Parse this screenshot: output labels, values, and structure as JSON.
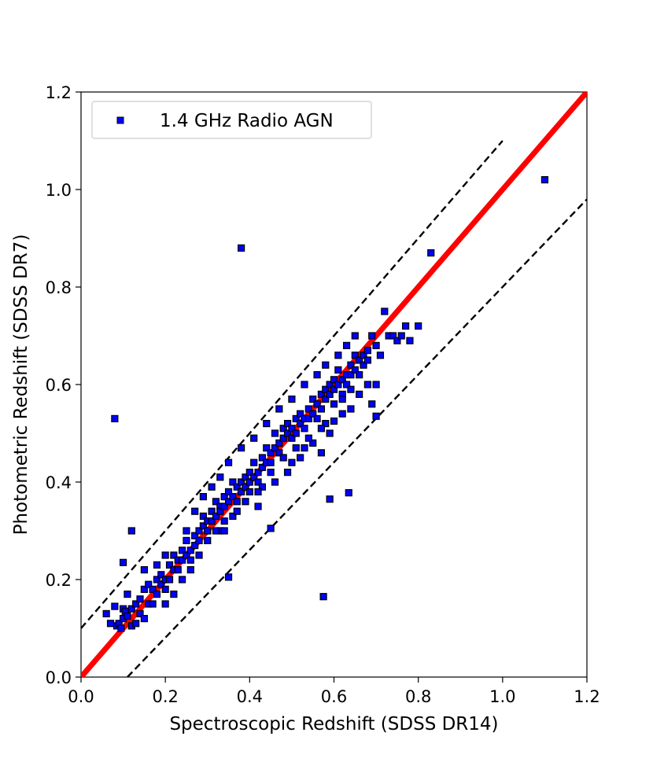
{
  "chart_data": {
    "type": "scatter",
    "xlabel": "Spectroscopic Redshift (SDSS DR14)",
    "ylabel": "Photometric Redshift (SDSS DR7)",
    "xlim": [
      0.0,
      1.2
    ],
    "ylim": [
      0.0,
      1.2
    ],
    "xticks": [
      "0.0",
      "0.2",
      "0.4",
      "0.6",
      "0.8",
      "1.0",
      "1.2"
    ],
    "yticks": [
      "0.0",
      "0.2",
      "0.4",
      "0.6",
      "0.8",
      "1.0",
      "1.2"
    ],
    "grid": false,
    "legend_position": "top-left",
    "series": [
      {
        "name": "1.4 GHz Radio AGN",
        "marker": "square",
        "color": "#0000ff",
        "edgecolor": "#000000",
        "points": [
          [
            0.06,
            0.13
          ],
          [
            0.07,
            0.11
          ],
          [
            0.08,
            0.145
          ],
          [
            0.085,
            0.105
          ],
          [
            0.09,
            0.11
          ],
          [
            0.095,
            0.1
          ],
          [
            0.1,
            0.14
          ],
          [
            0.1,
            0.12
          ],
          [
            0.105,
            0.135
          ],
          [
            0.11,
            0.125
          ],
          [
            0.11,
            0.17
          ],
          [
            0.12,
            0.105
          ],
          [
            0.12,
            0.14
          ],
          [
            0.13,
            0.11
          ],
          [
            0.13,
            0.15
          ],
          [
            0.14,
            0.13
          ],
          [
            0.14,
            0.16
          ],
          [
            0.15,
            0.12
          ],
          [
            0.15,
            0.18
          ],
          [
            0.16,
            0.15
          ],
          [
            0.16,
            0.19
          ],
          [
            0.17,
            0.18
          ],
          [
            0.17,
            0.15
          ],
          [
            0.18,
            0.17
          ],
          [
            0.18,
            0.2
          ],
          [
            0.19,
            0.19
          ],
          [
            0.19,
            0.21
          ],
          [
            0.2,
            0.2
          ],
          [
            0.2,
            0.18
          ],
          [
            0.21,
            0.23
          ],
          [
            0.21,
            0.2
          ],
          [
            0.22,
            0.22
          ],
          [
            0.22,
            0.25
          ],
          [
            0.23,
            0.24
          ],
          [
            0.23,
            0.22
          ],
          [
            0.24,
            0.26
          ],
          [
            0.24,
            0.24
          ],
          [
            0.25,
            0.25
          ],
          [
            0.25,
            0.28
          ],
          [
            0.26,
            0.26
          ],
          [
            0.26,
            0.24
          ],
          [
            0.27,
            0.29
          ],
          [
            0.27,
            0.27
          ],
          [
            0.28,
            0.3
          ],
          [
            0.28,
            0.28
          ],
          [
            0.29,
            0.31
          ],
          [
            0.29,
            0.33
          ],
          [
            0.3,
            0.32
          ],
          [
            0.3,
            0.3
          ],
          [
            0.31,
            0.34
          ],
          [
            0.31,
            0.32
          ],
          [
            0.32,
            0.33
          ],
          [
            0.32,
            0.36
          ],
          [
            0.33,
            0.35
          ],
          [
            0.33,
            0.34
          ],
          [
            0.34,
            0.37
          ],
          [
            0.34,
            0.35
          ],
          [
            0.35,
            0.36
          ],
          [
            0.35,
            0.38
          ],
          [
            0.36,
            0.37
          ],
          [
            0.36,
            0.4
          ],
          [
            0.37,
            0.39
          ],
          [
            0.37,
            0.36
          ],
          [
            0.38,
            0.4
          ],
          [
            0.38,
            0.38
          ],
          [
            0.39,
            0.41
          ],
          [
            0.39,
            0.39
          ],
          [
            0.4,
            0.42
          ],
          [
            0.4,
            0.4
          ],
          [
            0.41,
            0.41
          ],
          [
            0.41,
            0.44
          ],
          [
            0.42,
            0.42
          ],
          [
            0.42,
            0.4
          ],
          [
            0.43,
            0.45
          ],
          [
            0.43,
            0.43
          ],
          [
            0.44,
            0.44
          ],
          [
            0.44,
            0.47
          ],
          [
            0.45,
            0.46
          ],
          [
            0.45,
            0.44
          ],
          [
            0.46,
            0.47
          ],
          [
            0.46,
            0.5
          ],
          [
            0.47,
            0.48
          ],
          [
            0.47,
            0.46
          ],
          [
            0.48,
            0.49
          ],
          [
            0.48,
            0.51
          ],
          [
            0.49,
            0.5
          ],
          [
            0.49,
            0.52
          ],
          [
            0.5,
            0.51
          ],
          [
            0.5,
            0.49
          ],
          [
            0.51,
            0.53
          ],
          [
            0.51,
            0.5
          ],
          [
            0.52,
            0.52
          ],
          [
            0.52,
            0.54
          ],
          [
            0.53,
            0.53
          ],
          [
            0.53,
            0.51
          ],
          [
            0.54,
            0.55
          ],
          [
            0.54,
            0.53
          ],
          [
            0.55,
            0.54
          ],
          [
            0.55,
            0.57
          ],
          [
            0.56,
            0.56
          ],
          [
            0.56,
            0.53
          ],
          [
            0.57,
            0.58
          ],
          [
            0.57,
            0.55
          ],
          [
            0.58,
            0.59
          ],
          [
            0.58,
            0.57
          ],
          [
            0.59,
            0.6
          ],
          [
            0.59,
            0.58
          ],
          [
            0.6,
            0.61
          ],
          [
            0.6,
            0.59
          ],
          [
            0.61,
            0.6
          ],
          [
            0.61,
            0.63
          ],
          [
            0.62,
            0.61
          ],
          [
            0.62,
            0.58
          ],
          [
            0.63,
            0.62
          ],
          [
            0.63,
            0.6
          ],
          [
            0.64,
            0.64
          ],
          [
            0.64,
            0.62
          ],
          [
            0.65,
            0.63
          ],
          [
            0.65,
            0.66
          ],
          [
            0.66,
            0.65
          ],
          [
            0.66,
            0.62
          ],
          [
            0.67,
            0.66
          ],
          [
            0.67,
            0.64
          ],
          [
            0.68,
            0.67
          ],
          [
            0.68,
            0.65
          ],
          [
            0.69,
            0.7
          ],
          [
            0.7,
            0.68
          ],
          [
            0.71,
            0.66
          ],
          [
            0.72,
            0.75
          ],
          [
            0.73,
            0.7
          ],
          [
            0.74,
            0.7
          ],
          [
            0.75,
            0.69
          ],
          [
            0.76,
            0.7
          ],
          [
            0.77,
            0.72
          ],
          [
            0.78,
            0.69
          ],
          [
            0.8,
            0.72
          ],
          [
            0.83,
            0.87
          ],
          [
            1.1,
            1.02
          ],
          [
            0.38,
            0.88
          ],
          [
            0.08,
            0.53
          ],
          [
            0.12,
            0.3
          ],
          [
            0.1,
            0.235
          ],
          [
            0.35,
            0.205
          ],
          [
            0.45,
            0.305
          ],
          [
            0.575,
            0.165
          ],
          [
            0.59,
            0.365
          ],
          [
            0.635,
            0.378
          ],
          [
            0.6,
            0.525
          ],
          [
            0.7,
            0.535
          ],
          [
            0.69,
            0.56
          ],
          [
            0.3,
            0.3
          ],
          [
            0.33,
            0.3
          ],
          [
            0.34,
            0.3
          ],
          [
            0.36,
            0.33
          ],
          [
            0.42,
            0.35
          ],
          [
            0.4,
            0.38
          ],
          [
            0.43,
            0.39
          ],
          [
            0.46,
            0.4
          ],
          [
            0.49,
            0.42
          ],
          [
            0.5,
            0.44
          ],
          [
            0.52,
            0.45
          ],
          [
            0.53,
            0.47
          ],
          [
            0.55,
            0.48
          ],
          [
            0.57,
            0.46
          ],
          [
            0.58,
            0.52
          ],
          [
            0.62,
            0.54
          ],
          [
            0.64,
            0.55
          ],
          [
            0.66,
            0.58
          ],
          [
            0.68,
            0.6
          ],
          [
            0.7,
            0.6
          ],
          [
            0.2,
            0.15
          ],
          [
            0.22,
            0.17
          ],
          [
            0.24,
            0.2
          ],
          [
            0.26,
            0.22
          ],
          [
            0.28,
            0.25
          ],
          [
            0.15,
            0.22
          ],
          [
            0.18,
            0.23
          ],
          [
            0.2,
            0.25
          ],
          [
            0.25,
            0.3
          ],
          [
            0.27,
            0.34
          ],
          [
            0.29,
            0.37
          ],
          [
            0.31,
            0.39
          ],
          [
            0.33,
            0.41
          ],
          [
            0.35,
            0.44
          ],
          [
            0.38,
            0.47
          ],
          [
            0.41,
            0.49
          ],
          [
            0.44,
            0.52
          ],
          [
            0.47,
            0.55
          ],
          [
            0.5,
            0.57
          ],
          [
            0.53,
            0.6
          ],
          [
            0.56,
            0.62
          ],
          [
            0.58,
            0.64
          ],
          [
            0.61,
            0.66
          ],
          [
            0.63,
            0.68
          ],
          [
            0.65,
            0.7
          ],
          [
            0.59,
            0.5
          ],
          [
            0.6,
            0.56
          ],
          [
            0.62,
            0.57
          ],
          [
            0.64,
            0.59
          ],
          [
            0.57,
            0.51
          ],
          [
            0.54,
            0.49
          ],
          [
            0.51,
            0.47
          ],
          [
            0.48,
            0.45
          ],
          [
            0.45,
            0.42
          ],
          [
            0.42,
            0.38
          ],
          [
            0.39,
            0.36
          ],
          [
            0.37,
            0.34
          ],
          [
            0.34,
            0.32
          ],
          [
            0.32,
            0.3
          ],
          [
            0.3,
            0.28
          ]
        ]
      }
    ],
    "lines": [
      {
        "kind": "one-to-one",
        "color": "#ff0000",
        "style": "solid",
        "points": [
          [
            0.0,
            0.0
          ],
          [
            1.2,
            1.2
          ]
        ]
      },
      {
        "kind": "upper-bound",
        "color": "#000000",
        "style": "dashed",
        "points": [
          [
            0.0,
            0.1
          ],
          [
            1.0,
            1.1
          ]
        ]
      },
      {
        "kind": "lower-bound",
        "color": "#000000",
        "style": "dashed",
        "points": [
          [
            0.11,
            0.0
          ],
          [
            1.2,
            0.98
          ]
        ]
      }
    ]
  }
}
